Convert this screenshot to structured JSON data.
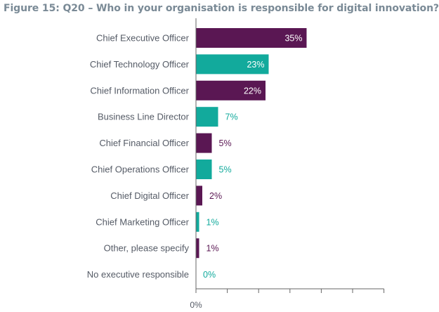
{
  "figure": {
    "title": "Figure 15: Q20 – Who in your organisation is responsible for digital innovation?"
  },
  "colors": {
    "purple": "#5a1753",
    "teal": "#12aa9c",
    "title": "#7a8a96",
    "label": "#555b66",
    "axis": "#666666"
  },
  "chart_data": {
    "type": "bar",
    "orientation": "horizontal",
    "title": "Figure 15: Q20 – Who in your organisation is responsible for digital innovation?",
    "xlim": [
      0,
      70
    ],
    "x_tick_labels": [
      "0%"
    ],
    "categories": [
      "Chief Executive Officer",
      "Chief Technology Officer",
      "Chief Information Officer",
      "Business Line Director",
      "Chief Financial Officer",
      "Chief Operations Officer",
      "Chief Digital Officer",
      "Chief Marketing Officer",
      "Other, please specify",
      "No executive responsible"
    ],
    "values": [
      35,
      23,
      22,
      7,
      5,
      5,
      2,
      1,
      1,
      0
    ],
    "value_labels": [
      "35%",
      "23%",
      "22%",
      "7%",
      "5%",
      "5%",
      "2%",
      "1%",
      "1%",
      "0%"
    ],
    "bar_colors": [
      "#5a1753",
      "#12aa9c",
      "#5a1753",
      "#12aa9c",
      "#5a1753",
      "#12aa9c",
      "#5a1753",
      "#12aa9c",
      "#5a1753",
      "#12aa9c"
    ],
    "label_inside_bar": [
      true,
      true,
      true,
      false,
      false,
      false,
      false,
      false,
      false,
      false
    ]
  }
}
